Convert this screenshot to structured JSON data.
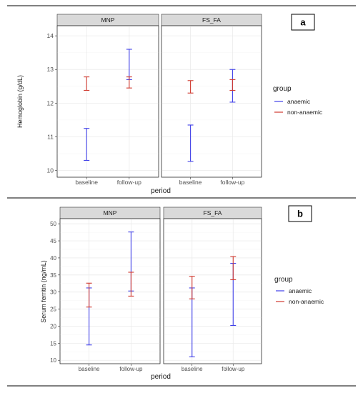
{
  "figure": {
    "colors": {
      "anaemic": "#4040e8",
      "non_anaemic": "#d03a30",
      "strip": "#d9d9d9",
      "grid": "#ebebeb",
      "axis_text": "#4d4d4d"
    }
  },
  "chart_data": [
    {
      "type": "errorbar",
      "panel_label": "a",
      "facets": [
        "MNP",
        "FS_FA"
      ],
      "categories": [
        "baseline",
        "follow-up"
      ],
      "xlabel": "period",
      "ylabel": "Hemoglobin (g/dL)",
      "ylim": [
        9.8,
        14.3
      ],
      "yticks": [
        10,
        11,
        12,
        13,
        14
      ],
      "grid": true,
      "legend": {
        "title": "group",
        "entries": [
          "anaemic",
          "non-anaemic"
        ],
        "position": "right"
      },
      "series": [
        {
          "name": "anaemic",
          "color": "#4040e8",
          "MNP": [
            {
              "x": "baseline",
              "low": 10.3,
              "high": 11.25
            },
            {
              "x": "follow-up",
              "low": 12.7,
              "high": 13.6
            }
          ],
          "FS_FA": [
            {
              "x": "baseline",
              "low": 10.27,
              "high": 11.35
            },
            {
              "x": "follow-up",
              "low": 12.03,
              "high": 13.0
            }
          ]
        },
        {
          "name": "non-anaemic",
          "color": "#d03a30",
          "MNP": [
            {
              "x": "baseline",
              "low": 12.38,
              "high": 12.78
            },
            {
              "x": "follow-up",
              "low": 12.45,
              "high": 12.78
            }
          ],
          "FS_FA": [
            {
              "x": "baseline",
              "low": 12.3,
              "high": 12.67
            },
            {
              "x": "follow-up",
              "low": 12.38,
              "high": 12.7
            }
          ]
        }
      ]
    },
    {
      "type": "errorbar",
      "panel_label": "b",
      "facets": [
        "MNP",
        "FS_FA"
      ],
      "categories": [
        "baseline",
        "follow-up"
      ],
      "xlabel": "period",
      "ylabel": "Serum ferritin (ng/mL)",
      "ylim": [
        9,
        51.5
      ],
      "yticks": [
        10,
        15,
        20,
        25,
        30,
        35,
        40,
        45,
        50
      ],
      "grid": true,
      "legend": {
        "title": "group",
        "entries": [
          "anaemic",
          "non-anaemic"
        ],
        "position": "right"
      },
      "series": [
        {
          "name": "anaemic",
          "color": "#4040e8",
          "MNP": [
            {
              "x": "baseline",
              "low": 14.5,
              "high": 31.2
            },
            {
              "x": "follow-up",
              "low": 30.3,
              "high": 47.6
            }
          ],
          "FS_FA": [
            {
              "x": "baseline",
              "low": 11.0,
              "high": 31.2
            },
            {
              "x": "follow-up",
              "low": 20.2,
              "high": 38.4
            }
          ]
        },
        {
          "name": "non-anaemic",
          "color": "#d03a30",
          "MNP": [
            {
              "x": "baseline",
              "low": 25.6,
              "high": 32.6
            },
            {
              "x": "follow-up",
              "low": 28.8,
              "high": 35.8
            }
          ],
          "FS_FA": [
            {
              "x": "baseline",
              "low": 28.0,
              "high": 34.6
            },
            {
              "x": "follow-up",
              "low": 33.6,
              "high": 40.4
            }
          ]
        }
      ]
    }
  ]
}
